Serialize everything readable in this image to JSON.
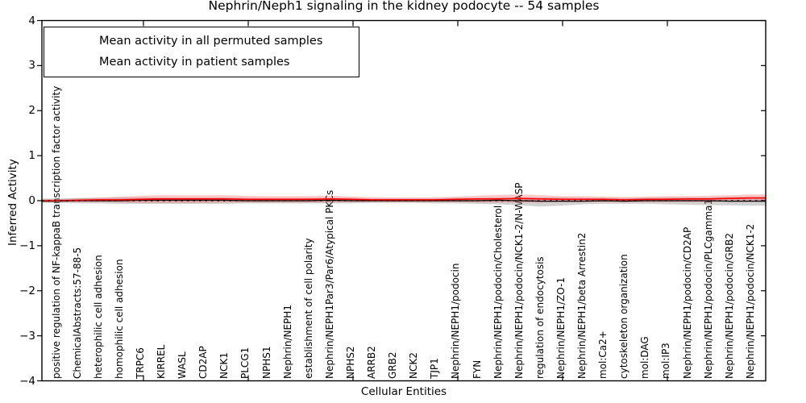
{
  "title": "Nephrin/Neph1 signaling in the kidney podocyte -- 54 samples",
  "axes": {
    "xlabel": "Cellular Entities",
    "ylabel": "Inferred Activity",
    "yticks": [
      "4",
      "3",
      "2",
      "1",
      "0",
      "−1",
      "−2",
      "−3",
      "−4"
    ]
  },
  "legend": {
    "items": [
      {
        "label": "Mean activity in all permuted samples",
        "color": "#000000"
      },
      {
        "label": "Mean activity in patient samples",
        "color": "#ff0000"
      }
    ]
  },
  "chart_data": {
    "type": "line",
    "title": "Nephrin/Neph1 signaling in the kidney podocyte -- 54 samples",
    "xlabel": "Cellular Entities",
    "ylabel": "Inferred Activity",
    "ylim": [
      -4,
      4
    ],
    "grid": false,
    "legend_position": "upper left",
    "zero_line": {
      "style": "dashed",
      "color": "#000000",
      "y": 0
    },
    "categories": [
      "positive regulation of NF-kappaB transcription factor activity",
      "ChemicalAbstracts:57-88-5",
      "heterophilic cell adhesion",
      "homophilic cell adhesion",
      "TRPC6",
      "KIRREL",
      "WASL",
      "CD2AP",
      "NCK1",
      "PLCG1",
      "NPHS1",
      "Nephrin/NEPH1",
      "establishment of cell polarity",
      "Nephrin/NEPH1Par3/Par6/Atypical PKCs",
      "NPHS2",
      "ARRB2",
      "GRB2",
      "NCK2",
      "TJP1",
      "Nephrin/NEPH1/podocin",
      "FYN",
      "Nephrin/NEPH1/podocin/Cholesterol",
      "Nephrin/NEPH1/podocin/NCK1-2/N-WASP",
      "regulation of endocytosis",
      "Nephrin/NEPH1/ZO-1",
      "Nephrin/NEPH1/beta Arrestin2",
      "mol:Ca2+",
      "cytoskeleton organization",
      "mol:DAG",
      "mol:IP3",
      "Nephrin/NEPH1/podocin/CD2AP",
      "Nephrin/NEPH1/podocin/PLCgamma1",
      "Nephrin/NEPH1/podocin/GRB2",
      "Nephrin/NEPH1/podocin/NCK1-2"
    ],
    "series": [
      {
        "name": "Mean activity in all permuted samples",
        "color": "#000000",
        "width": 1.2,
        "values": [
          -0.01,
          0.0,
          0.0,
          0.0,
          0.01,
          0.01,
          0.01,
          0.01,
          0.01,
          0.0,
          0.0,
          0.0,
          0.0,
          0.01,
          0.0,
          0.0,
          0.0,
          0.0,
          0.0,
          0.0,
          0.0,
          0.01,
          0.0,
          -0.01,
          -0.01,
          -0.01,
          0.0,
          -0.01,
          0.0,
          0.0,
          0.0,
          0.0,
          -0.01,
          -0.01
        ]
      },
      {
        "name": "Mean activity in patient samples",
        "color": "#ff0000",
        "width": 1.6,
        "values": [
          0.0,
          0.01,
          0.02,
          0.02,
          0.03,
          0.04,
          0.04,
          0.04,
          0.04,
          0.03,
          0.03,
          0.03,
          0.03,
          0.04,
          0.03,
          0.02,
          0.02,
          0.02,
          0.02,
          0.03,
          0.04,
          0.04,
          0.05,
          0.04,
          0.03,
          0.03,
          0.03,
          0.02,
          0.03,
          0.03,
          0.04,
          0.04,
          0.05,
          0.06
        ]
      }
    ],
    "bands": [
      {
        "name": "permuted-samples-range",
        "color": "#999999",
        "opacity": 0.45,
        "upper": [
          0.05,
          0.06,
          0.06,
          0.07,
          0.07,
          0.07,
          0.07,
          0.07,
          0.07,
          0.06,
          0.06,
          0.06,
          0.06,
          0.06,
          0.06,
          0.05,
          0.05,
          0.05,
          0.05,
          0.06,
          0.06,
          0.07,
          0.07,
          0.07,
          0.07,
          0.06,
          0.06,
          0.06,
          0.06,
          0.07,
          0.07,
          0.07,
          0.08,
          0.08
        ],
        "lower": [
          -0.05,
          -0.06,
          -0.06,
          -0.07,
          -0.07,
          -0.07,
          -0.07,
          -0.07,
          -0.07,
          -0.06,
          -0.06,
          -0.06,
          -0.06,
          -0.06,
          -0.06,
          -0.05,
          -0.05,
          -0.05,
          -0.06,
          -0.06,
          -0.07,
          -0.08,
          -0.1,
          -0.13,
          -0.11,
          -0.08,
          -0.07,
          -0.07,
          -0.07,
          -0.08,
          -0.09,
          -0.1,
          -0.1,
          -0.11
        ]
      },
      {
        "name": "patient-samples-range",
        "color": "#ff0000",
        "opacity": 0.22,
        "upper": [
          0.03,
          0.05,
          0.07,
          0.09,
          0.11,
          0.12,
          0.12,
          0.12,
          0.12,
          0.11,
          0.1,
          0.1,
          0.1,
          0.11,
          0.09,
          0.08,
          0.07,
          0.07,
          0.08,
          0.09,
          0.11,
          0.13,
          0.14,
          0.12,
          0.1,
          0.1,
          0.09,
          0.08,
          0.09,
          0.1,
          0.1,
          0.11,
          0.12,
          0.14
        ],
        "lower": [
          -0.03,
          -0.03,
          -0.03,
          -0.04,
          -0.05,
          -0.05,
          -0.05,
          -0.05,
          -0.04,
          -0.04,
          -0.04,
          -0.04,
          -0.04,
          -0.04,
          -0.03,
          -0.03,
          -0.03,
          -0.03,
          -0.03,
          -0.03,
          -0.04,
          -0.04,
          -0.04,
          -0.04,
          -0.03,
          -0.03,
          -0.03,
          -0.03,
          -0.03,
          -0.03,
          -0.03,
          -0.03,
          -0.02,
          -0.02
        ]
      }
    ]
  }
}
